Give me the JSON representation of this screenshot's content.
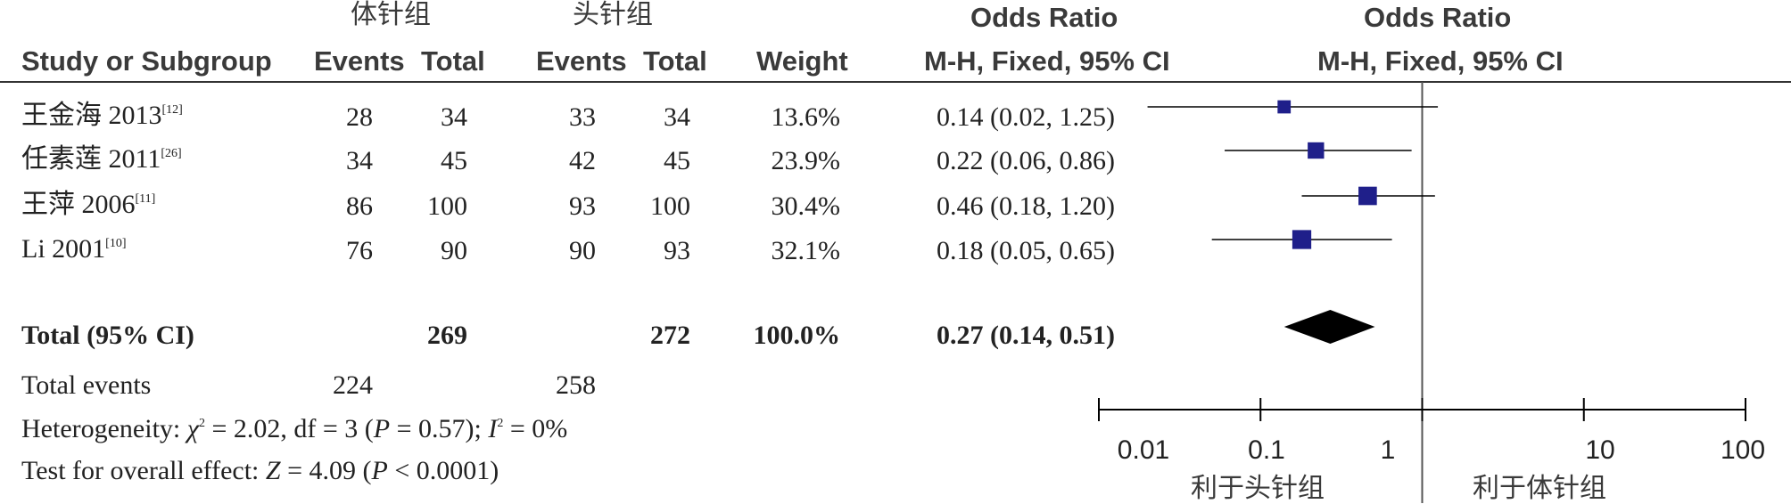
{
  "header": {
    "group1": "体针组",
    "group2": "头针组",
    "or_title_left": "Odds Ratio",
    "or_title_right": "Odds Ratio",
    "col_study": "Study or Subgroup",
    "col_events1": "Events",
    "col_total1": "Total",
    "col_events2": "Events",
    "col_total2": "Total",
    "col_weight": "Weight",
    "col_method_left": "M-H, Fixed, 95% CI",
    "col_method_right": "M-H, Fixed, 95% CI"
  },
  "studies": [
    {
      "name": "王金海 2013",
      "ref": "[12]",
      "events1": "28",
      "total1": "34",
      "events2": "33",
      "total2": "34",
      "weight": "13.6%",
      "ci_text": "0.14 (0.02, 1.25)"
    },
    {
      "name": "任素莲 2011",
      "ref": "[26]",
      "events1": "34",
      "total1": "45",
      "events2": "42",
      "total2": "45",
      "weight": "23.9%",
      "ci_text": "0.22 (0.06, 0.86)"
    },
    {
      "name": "王萍 2006",
      "ref": "[11]",
      "events1": "86",
      "total1": "100",
      "events2": "93",
      "total2": "100",
      "weight": "30.4%",
      "ci_text": "0.46 (0.18, 1.20)"
    },
    {
      "name": "Li 2001",
      "ref": "[10]",
      "events1": "76",
      "total1": "90",
      "events2": "90",
      "total2": "93",
      "weight": "32.1%",
      "ci_text": "0.18 (0.05, 0.65)"
    }
  ],
  "total": {
    "label": "Total (95% CI)",
    "total1": "269",
    "total2": "272",
    "weight": "100.0%",
    "ci_text": "0.27 (0.14, 0.51)"
  },
  "total_events": {
    "label": "Total events",
    "events1": "224",
    "events2": "258"
  },
  "heterogeneity": {
    "prefix": "Heterogeneity: ",
    "chi": "χ",
    "chi_value": " = 2.02, df = 3 (",
    "p": "P",
    "p_value": " = 0.57); ",
    "i": "I",
    "i_value": " = 0%"
  },
  "overall": {
    "prefix": "Test for overall effect: ",
    "z": "Z",
    "z_value": " = 4.09 (",
    "p": "P",
    "p_value": " < 0.0001)"
  },
  "axis": {
    "ticks": [
      "0.01",
      "0.1",
      "1",
      "10",
      "100"
    ],
    "favours_left": "利于头针组",
    "favours_right": "利于体针组"
  },
  "colors": {
    "marker": "#1f1f8a",
    "line": "#000000",
    "diamond": "#000000",
    "rule": "#333333"
  },
  "chart_data": {
    "type": "scatter",
    "scale": "log",
    "xlim": [
      0.01,
      100
    ],
    "null_value": 1,
    "points": [
      {
        "label": "王金海 2013",
        "or": 0.14,
        "lower": 0.02,
        "upper": 1.25,
        "weight": 13.6
      },
      {
        "label": "任素莲 2011",
        "or": 0.22,
        "lower": 0.06,
        "upper": 0.86,
        "weight": 23.9
      },
      {
        "label": "王萍 2006",
        "or": 0.46,
        "lower": 0.18,
        "upper": 1.2,
        "weight": 30.4
      },
      {
        "label": "Li 2001",
        "or": 0.18,
        "lower": 0.05,
        "upper": 0.65,
        "weight": 32.1
      }
    ],
    "pooled": {
      "label": "Total (95% CI)",
      "or": 0.27,
      "lower": 0.14,
      "upper": 0.51
    },
    "tick_labels": [
      "0.01",
      "0.1",
      "1",
      "10",
      "100"
    ]
  }
}
